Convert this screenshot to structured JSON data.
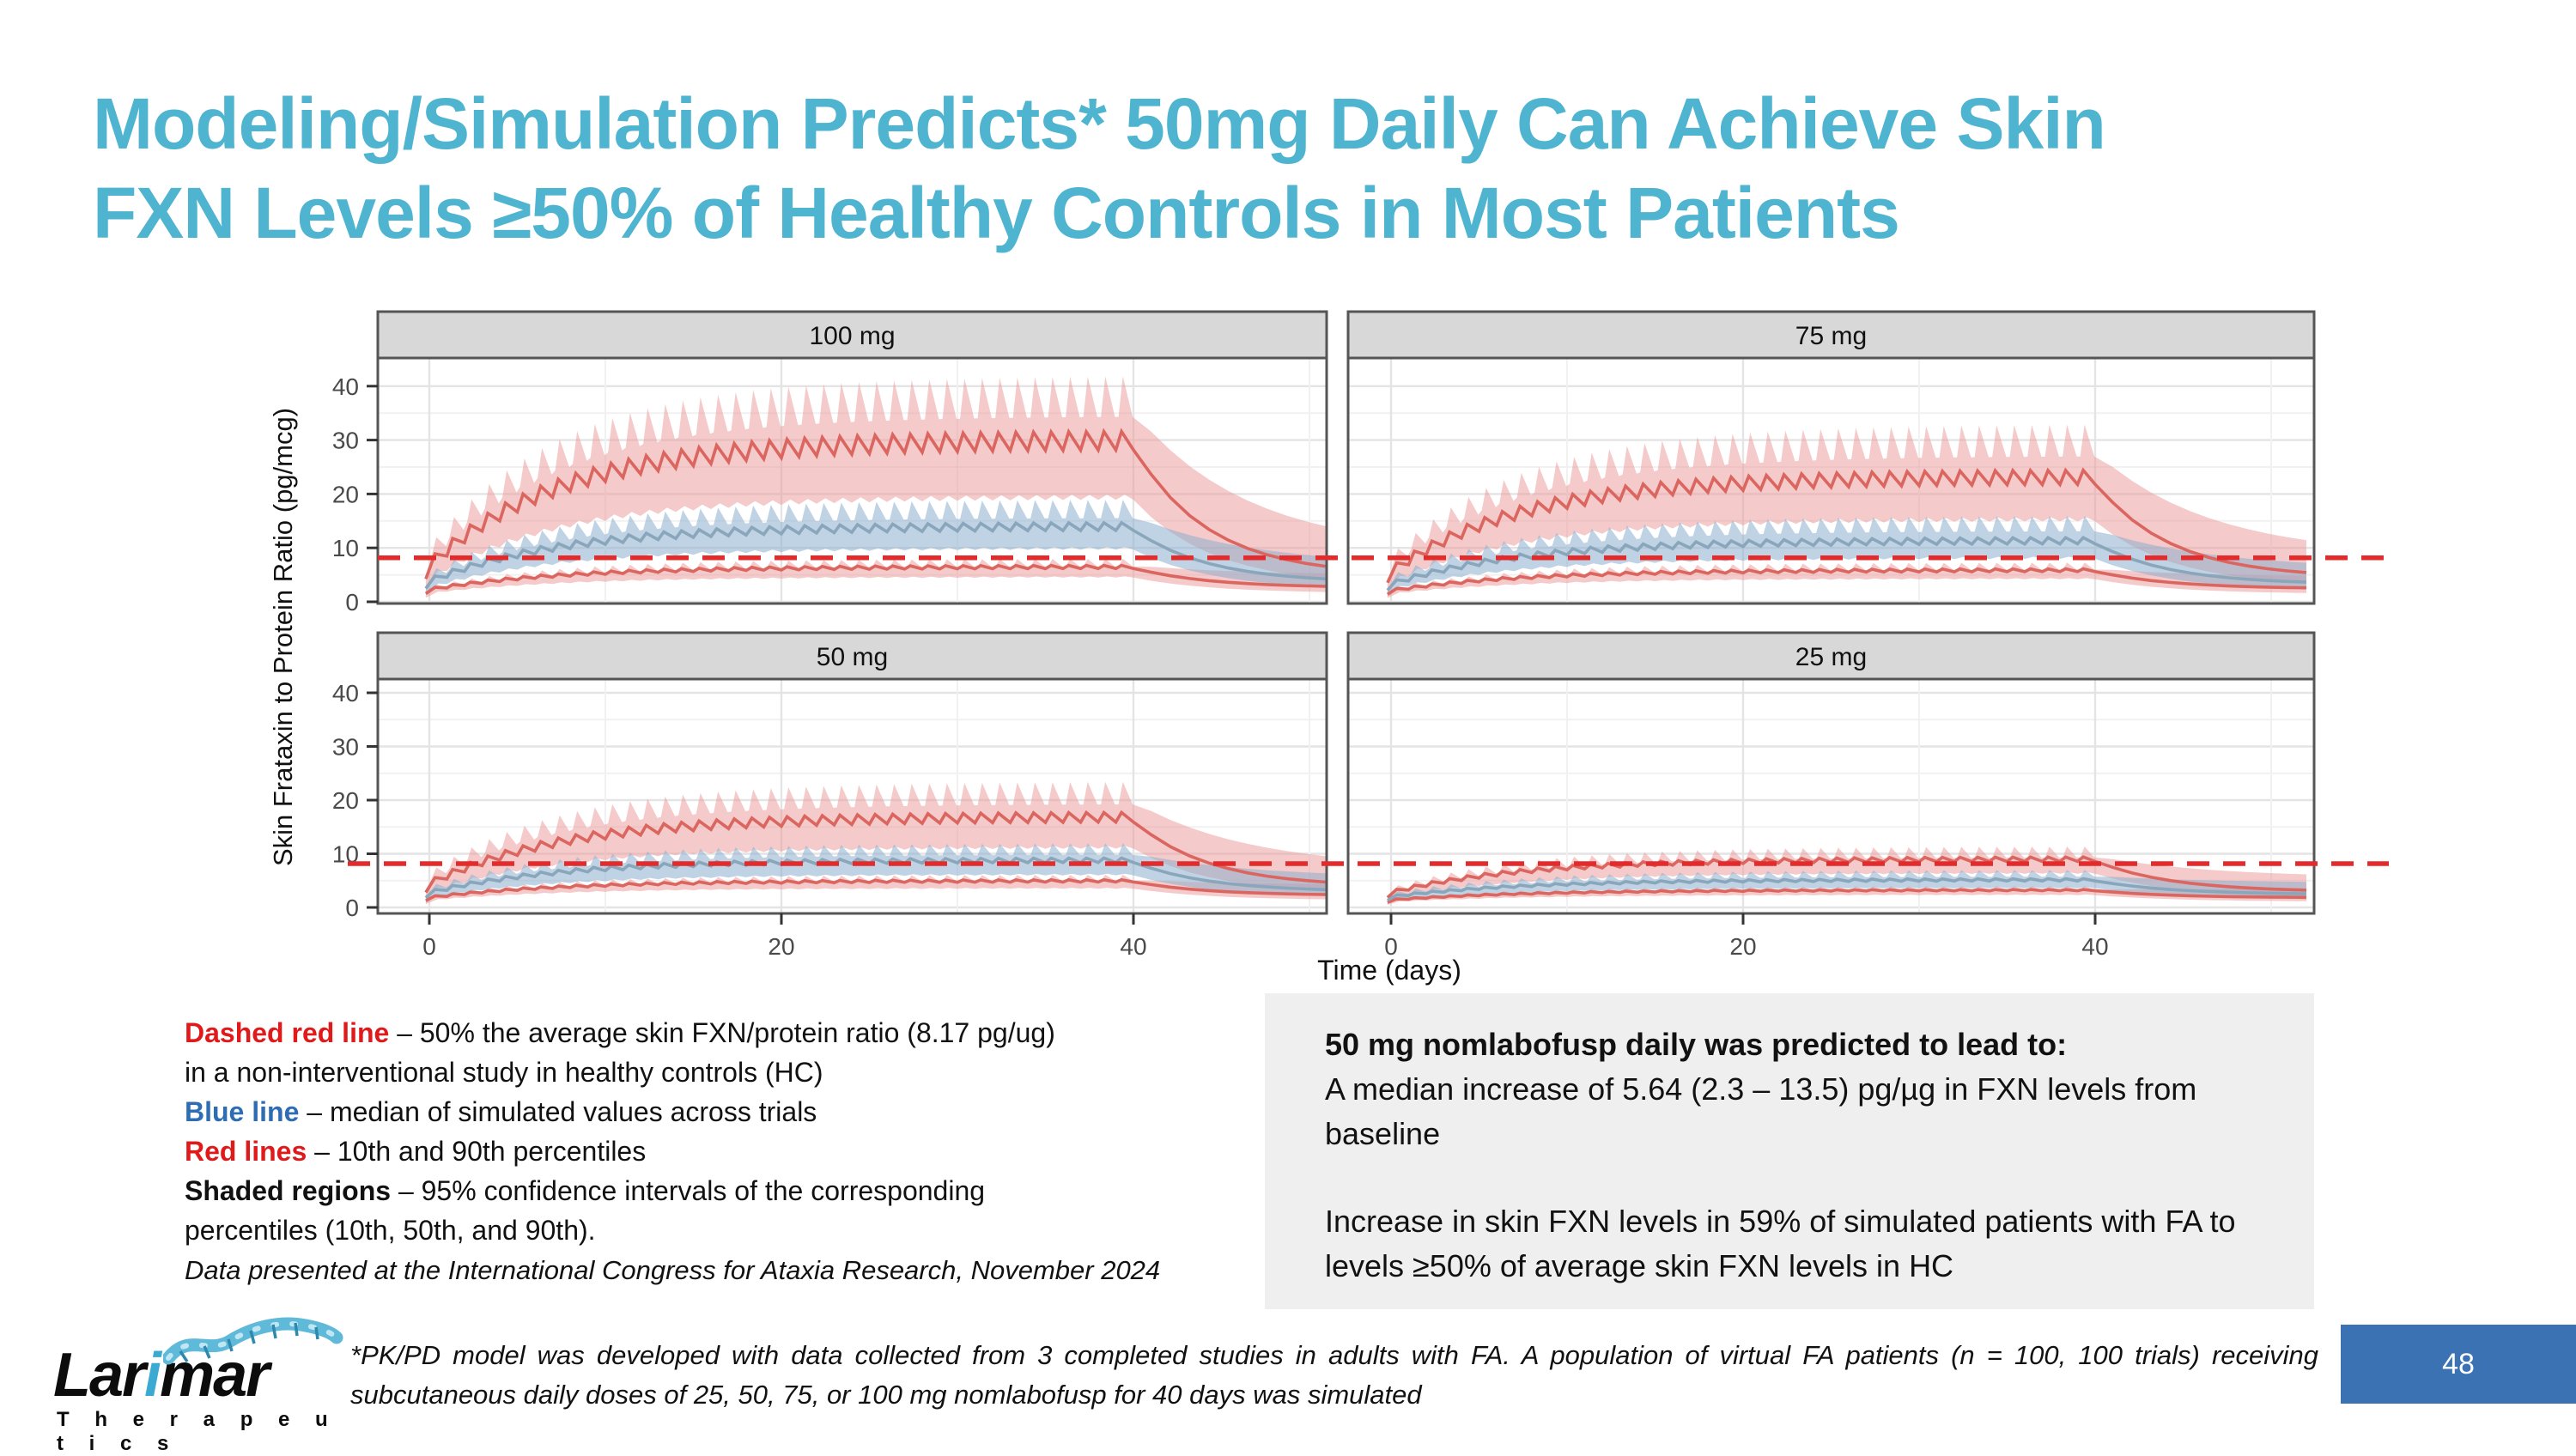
{
  "slide": {
    "title_line1": "Modeling/Simulation Predicts* 50mg Daily Can Achieve Skin",
    "title_line2": "FXN Levels ≥50% of Healthy Controls in Most Patients",
    "title_color": "#4FB4CF",
    "page_number": "48",
    "footnote": "*PK/PD model was developed with data collected from 3 completed studies in adults with FA. A population of virtual FA patients (n = 100, 100 trials) receiving subcutaneous daily doses of 25, 50, 75, or 100 mg nomlabofusp for 40 days was simulated",
    "attribution": "Data presented at the International Congress for Ataxia Research, November 2024",
    "page_box_color": "#3A72B4",
    "logo": {
      "part1": "Lar",
      "part2": "i",
      "part3": "mar",
      "subtitle": "T h e r a p e u t i c s"
    }
  },
  "legend": {
    "lines": [
      {
        "term": "Dashed red line",
        "color": "c-red",
        "text": " – 50% the average skin FXN/protein ratio (8.17 pg/ug)"
      },
      {
        "term": "",
        "color": "c-black",
        "text": "in a non-interventional study in healthy controls (HC)"
      },
      {
        "term": "Blue line",
        "color": "c-blue",
        "text": " – median of simulated values across trials"
      },
      {
        "term": "Red lines",
        "color": "c-red",
        "text": " – 10th and 90th percentiles"
      },
      {
        "term": "Shaded regions",
        "color": "c-black",
        "text": " – 95% confidence intervals of the corresponding"
      },
      {
        "term": "",
        "color": "c-black",
        "text": "percentiles (10th, 50th, and 90th)."
      }
    ]
  },
  "info_box": {
    "bg": "#EFEFEF",
    "heading": "50 mg nomlabofusp daily was predicted to lead to:",
    "body1": "A median increase of 5.64 (2.3 – 13.5) pg/µg in FXN levels from baseline",
    "body2": "Increase in skin FXN levels in 59% of simulated patients with FA  to levels ≥50% of average skin FXN levels in HC"
  },
  "chart_data": {
    "type": "line",
    "title": "",
    "x": {
      "label": "Time (days)",
      "ticks": [
        0,
        20,
        40
      ],
      "dosing_duration_days": 40,
      "sim_end_day": 52
    },
    "y": {
      "label": "Skin Frataxin to Protein Ratio (pg/mcg)",
      "ticks": [
        0,
        10,
        20,
        30,
        40
      ],
      "range": [
        0,
        45
      ]
    },
    "reference_line": {
      "value": 8.17,
      "meaning": "50% of average skin FXN/protein ratio in healthy controls",
      "color": "#E42B2B",
      "style": "dashed"
    },
    "facets": [
      {
        "label": "100 mg",
        "percentile_plateaus": {
          "p90": 29.5,
          "p50": 13.8,
          "p10": 6.4
        },
        "ci_at_plateau": {
          "p90": [
            19.0,
            42.0
          ],
          "p50": [
            9.7,
            19.0
          ],
          "p10": [
            4.5,
            8.0
          ]
        },
        "post_dose_floor": {
          "p90": 4.8,
          "p50": 3.5,
          "p10": 2.6
        },
        "osc": 0.075
      },
      {
        "label": "75 mg",
        "percentile_plateaus": {
          "p90": 22.8,
          "p50": 11.2,
          "p10": 5.8
        },
        "ci_at_plateau": {
          "p90": [
            15.0,
            33.0
          ],
          "p50": [
            8.0,
            16.0
          ],
          "p10": [
            4.2,
            7.3
          ]
        },
        "post_dose_floor": {
          "p90": 4.4,
          "p50": 3.2,
          "p10": 2.4
        },
        "osc": 0.075
      },
      {
        "label": "50 mg",
        "percentile_plateaus": {
          "p90": 16.6,
          "p50": 8.7,
          "p10": 4.9
        },
        "ci_at_plateau": {
          "p90": [
            11.0,
            23.5
          ],
          "p50": [
            6.0,
            12.0
          ],
          "p10": [
            3.5,
            6.1
          ]
        },
        "post_dose_floor": {
          "p90": 3.8,
          "p50": 2.9,
          "p10": 2.2
        },
        "osc": 0.07
      },
      {
        "label": "25 mg",
        "percentile_plateaus": {
          "p90": 8.9,
          "p50": 5.1,
          "p10": 3.2
        },
        "ci_at_plateau": {
          "p90": [
            6.3,
            11.4
          ],
          "p50": [
            3.6,
            7.0
          ],
          "p10": [
            2.3,
            4.0
          ]
        },
        "post_dose_floor": {
          "p90": 2.9,
          "p50": 2.4,
          "p10": 1.8
        },
        "osc": 0.06
      }
    ],
    "colors": {
      "percentile_line_red": "#DB655F",
      "median_line_blue": "#8AA6BB",
      "band_pink": "rgba(235,150,150,0.5)",
      "band_blue": "rgba(140,175,205,0.55)",
      "panel_header_bg": "#D8D8D8",
      "panel_border": "#555555",
      "grid_major": "#E4E4E4",
      "grid_minor": "#F1F1F1",
      "tick_text": "#4A4A4A"
    }
  }
}
